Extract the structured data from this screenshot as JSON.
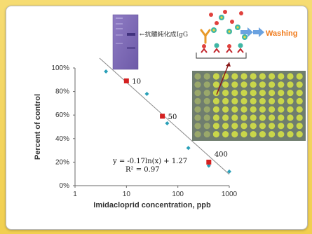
{
  "chart_data": {
    "type": "scatter",
    "title": "",
    "xlabel": "Imidacloprid concentration, ppb",
    "ylabel": "Percent of control",
    "x_scale": "log",
    "xlim": [
      1,
      1000
    ],
    "ylim": [
      0,
      100
    ],
    "x_tick_labels": [
      "1",
      "10",
      "100",
      "1000"
    ],
    "y_tick_labels": [
      "0%",
      "20%",
      "40%",
      "60%",
      "80%",
      "100%"
    ],
    "grid": false,
    "legend": "none",
    "series": [
      {
        "marker": "diamond",
        "color": "#2aa0b8",
        "points": [
          [
            4,
            97
          ],
          [
            25,
            78
          ],
          [
            62,
            53
          ],
          [
            160,
            32
          ],
          [
            400,
            17
          ],
          [
            1000,
            12
          ]
        ]
      },
      {
        "marker": "square",
        "color": "#d42020",
        "labels": [
          "10",
          "50",
          "400"
        ],
        "points": [
          [
            10,
            89
          ],
          [
            50,
            59
          ],
          [
            400,
            20
          ]
        ]
      }
    ],
    "trendline": {
      "type": "logarithmic",
      "x_range": [
        3,
        1000
      ],
      "equation_label": "y = -0.17ln(x) + 1.27",
      "r2_label": "R² = 0.97"
    }
  },
  "annotations": {
    "antibody_label": "←抗體純化成IgG",
    "washing_label": "Washing"
  },
  "colors": {
    "background": "#f4d35e",
    "card": "#ffffff",
    "teal_point": "#2aa0b8",
    "red_point": "#d42020",
    "trendline": "#8a8a8a",
    "washing_text": "#f07a1a",
    "arrow_fill": "#6aa2e0",
    "antibody_y": "#e89a2a",
    "gel": "#7f6bb5",
    "plate": "#6f7d6e",
    "well": "#c9d64a"
  }
}
